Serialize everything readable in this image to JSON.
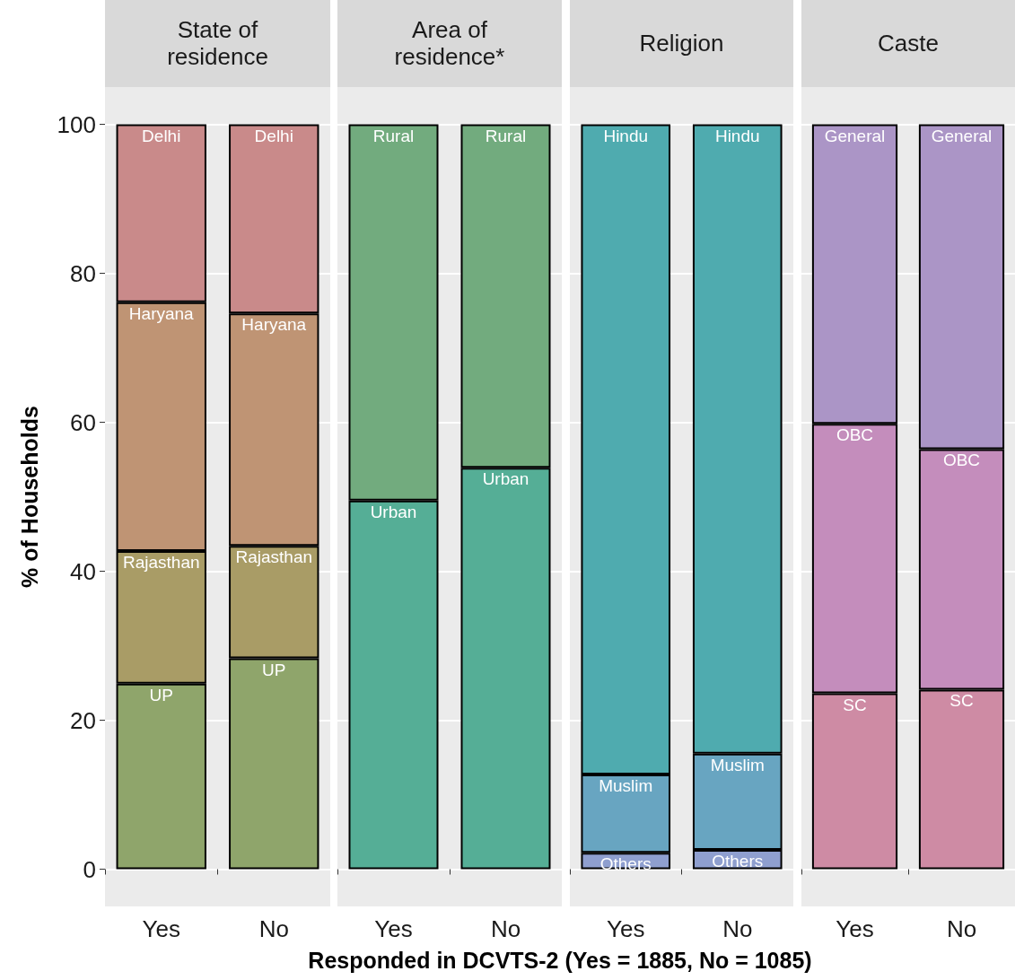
{
  "chart_data": [
    {
      "type": "bar",
      "title": "State of residence",
      "ylabel": "% of Households",
      "xlabel": "Responded in DCVTS-2 (Yes = 1885, No = 1085)",
      "categories": [
        "Yes",
        "No"
      ],
      "stacked": true,
      "ylim": [
        -5,
        105
      ],
      "yticks": [
        0,
        20,
        40,
        60,
        80,
        100
      ],
      "grid": "y",
      "series": [
        {
          "name": "UP",
          "color": "#8fa56b",
          "values": [
            24.9,
            28.3
          ]
        },
        {
          "name": "Rajasthan",
          "color": "#a99c66",
          "values": [
            17.8,
            15.1
          ]
        },
        {
          "name": "Haryana",
          "color": "#bf9474",
          "values": [
            33.4,
            31.2
          ]
        },
        {
          "name": "Delhi",
          "color": "#c98a8a",
          "values": [
            23.9,
            25.4
          ]
        }
      ]
    },
    {
      "type": "bar",
      "title": "Area of residence*",
      "categories": [
        "Yes",
        "No"
      ],
      "stacked": true,
      "ylim": [
        -5,
        105
      ],
      "yticks": [
        0,
        20,
        40,
        60,
        80,
        100
      ],
      "grid": "y",
      "tick_labels": "x",
      "series": [
        {
          "name": "Urban",
          "color": "#55ae96",
          "values": [
            49.5,
            53.9
          ]
        },
        {
          "name": "Rural",
          "color": "#72ab7e",
          "values": [
            50.5,
            46.1
          ]
        }
      ]
    },
    {
      "type": "bar",
      "title": "Religion",
      "categories": [
        "Yes",
        "No"
      ],
      "stacked": true,
      "ylim": [
        -5,
        105
      ],
      "yticks": [
        0,
        20,
        40,
        60,
        80,
        100
      ],
      "grid": "y",
      "tick_labels": "x",
      "series": [
        {
          "name": "Others",
          "color": "#8f9fcf",
          "values": [
            2.2,
            2.6
          ]
        },
        {
          "name": "Muslim",
          "color": "#68a5c1",
          "values": [
            10.5,
            12.9
          ]
        },
        {
          "name": "Hindu",
          "color": "#4fabaf",
          "values": [
            87.3,
            84.5
          ]
        }
      ]
    },
    {
      "type": "bar",
      "title": "Caste",
      "categories": [
        "Yes",
        "No"
      ],
      "stacked": true,
      "ylim": [
        -5,
        105
      ],
      "yticks": [
        0,
        20,
        40,
        60,
        80,
        100
      ],
      "grid": "y",
      "tick_labels": "x",
      "series": [
        {
          "name": "SC",
          "color": "#ce8ba4",
          "values": [
            23.6,
            24.1
          ]
        },
        {
          "name": "OBC",
          "color": "#c48dbc",
          "values": [
            36.2,
            32.3
          ]
        },
        {
          "name": "General",
          "color": "#ab95c6",
          "values": [
            40.2,
            43.6
          ]
        }
      ]
    }
  ]
}
